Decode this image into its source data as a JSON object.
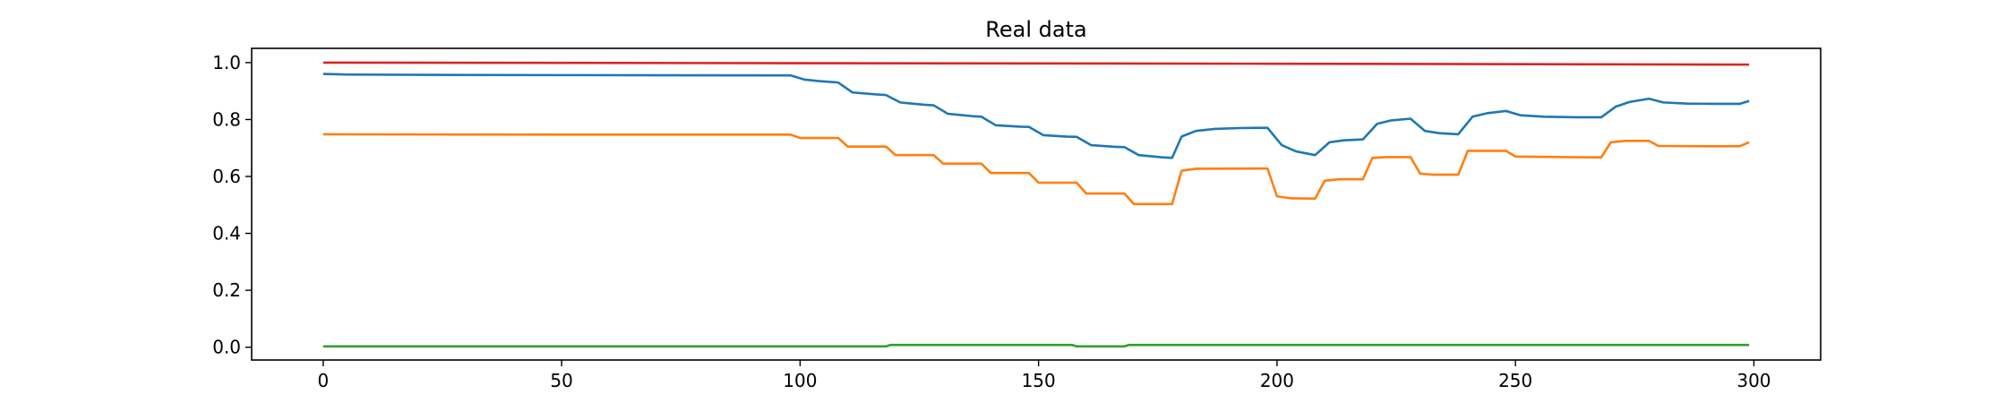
{
  "chart_data": {
    "type": "line",
    "title": "Real data",
    "xlabel": "",
    "ylabel": "",
    "xlim": [
      -15,
      314
    ],
    "ylim": [
      -0.045,
      1.05
    ],
    "xticks": [
      0,
      50,
      100,
      150,
      200,
      250,
      300
    ],
    "yticks": [
      0.0,
      0.2,
      0.4,
      0.6,
      0.8,
      1.0
    ],
    "xtick_labels": [
      "0",
      "50",
      "100",
      "150",
      "200",
      "250",
      "300"
    ],
    "ytick_labels": [
      "0.0",
      "0.2",
      "0.4",
      "0.6",
      "0.8",
      "1.0"
    ],
    "grid": false,
    "legend": "none",
    "series": [
      {
        "color": "#1f77b4",
        "points": [
          [
            0,
            0.96
          ],
          [
            5,
            0.958
          ],
          [
            20,
            0.957
          ],
          [
            50,
            0.956
          ],
          [
            98,
            0.955
          ],
          [
            101,
            0.94
          ],
          [
            104,
            0.935
          ],
          [
            108,
            0.93
          ],
          [
            111,
            0.895
          ],
          [
            116,
            0.888
          ],
          [
            118,
            0.886
          ],
          [
            121,
            0.86
          ],
          [
            126,
            0.852
          ],
          [
            128,
            0.85
          ],
          [
            131,
            0.82
          ],
          [
            136,
            0.812
          ],
          [
            138,
            0.81
          ],
          [
            141,
            0.78
          ],
          [
            146,
            0.775
          ],
          [
            148,
            0.774
          ],
          [
            151,
            0.745
          ],
          [
            156,
            0.74
          ],
          [
            158,
            0.739
          ],
          [
            161,
            0.71
          ],
          [
            166,
            0.704
          ],
          [
            168,
            0.703
          ],
          [
            171,
            0.675
          ],
          [
            176,
            0.667
          ],
          [
            178,
            0.665
          ],
          [
            180,
            0.74
          ],
          [
            183,
            0.76
          ],
          [
            187,
            0.767
          ],
          [
            192,
            0.77
          ],
          [
            198,
            0.771
          ],
          [
            201,
            0.71
          ],
          [
            204,
            0.688
          ],
          [
            208,
            0.675
          ],
          [
            211,
            0.72
          ],
          [
            214,
            0.727
          ],
          [
            218,
            0.73
          ],
          [
            221,
            0.785
          ],
          [
            224,
            0.797
          ],
          [
            228,
            0.803
          ],
          [
            231,
            0.76
          ],
          [
            234,
            0.752
          ],
          [
            238,
            0.748
          ],
          [
            241,
            0.81
          ],
          [
            244,
            0.822
          ],
          [
            248,
            0.83
          ],
          [
            251,
            0.815
          ],
          [
            256,
            0.81
          ],
          [
            263,
            0.808
          ],
          [
            268,
            0.808
          ],
          [
            271,
            0.845
          ],
          [
            274,
            0.862
          ],
          [
            278,
            0.873
          ],
          [
            281,
            0.86
          ],
          [
            286,
            0.856
          ],
          [
            292,
            0.855
          ],
          [
            297,
            0.855
          ],
          [
            299,
            0.865
          ]
        ]
      },
      {
        "color": "#ff7f0e",
        "points": [
          [
            0,
            0.748
          ],
          [
            50,
            0.747
          ],
          [
            98,
            0.747
          ],
          [
            100,
            0.735
          ],
          [
            108,
            0.735
          ],
          [
            110,
            0.705
          ],
          [
            118,
            0.705
          ],
          [
            120,
            0.675
          ],
          [
            128,
            0.675
          ],
          [
            130,
            0.645
          ],
          [
            138,
            0.645
          ],
          [
            140,
            0.612
          ],
          [
            148,
            0.612
          ],
          [
            150,
            0.578
          ],
          [
            158,
            0.578
          ],
          [
            160,
            0.54
          ],
          [
            168,
            0.54
          ],
          [
            170,
            0.503
          ],
          [
            178,
            0.503
          ],
          [
            180,
            0.62
          ],
          [
            183,
            0.627
          ],
          [
            198,
            0.628
          ],
          [
            200,
            0.53
          ],
          [
            203,
            0.523
          ],
          [
            208,
            0.522
          ],
          [
            210,
            0.585
          ],
          [
            213,
            0.59
          ],
          [
            218,
            0.59
          ],
          [
            220,
            0.665
          ],
          [
            223,
            0.668
          ],
          [
            228,
            0.668
          ],
          [
            230,
            0.61
          ],
          [
            233,
            0.606
          ],
          [
            238,
            0.606
          ],
          [
            240,
            0.69
          ],
          [
            243,
            0.69
          ],
          [
            248,
            0.69
          ],
          [
            250,
            0.67
          ],
          [
            260,
            0.668
          ],
          [
            268,
            0.667
          ],
          [
            270,
            0.72
          ],
          [
            273,
            0.725
          ],
          [
            278,
            0.725
          ],
          [
            280,
            0.707
          ],
          [
            290,
            0.706
          ],
          [
            297,
            0.706
          ],
          [
            299,
            0.72
          ]
        ]
      },
      {
        "color": "#2ca02c",
        "points": [
          [
            0,
            0.003
          ],
          [
            118,
            0.003
          ],
          [
            119,
            0.008
          ],
          [
            157,
            0.008
          ],
          [
            158,
            0.003
          ],
          [
            168,
            0.003
          ],
          [
            169,
            0.008
          ],
          [
            299,
            0.008
          ]
        ]
      },
      {
        "color": "#d62728",
        "points": [
          [
            0,
            1.0
          ],
          [
            100,
            0.998
          ],
          [
            200,
            0.996
          ],
          [
            299,
            0.993
          ]
        ]
      }
    ]
  }
}
